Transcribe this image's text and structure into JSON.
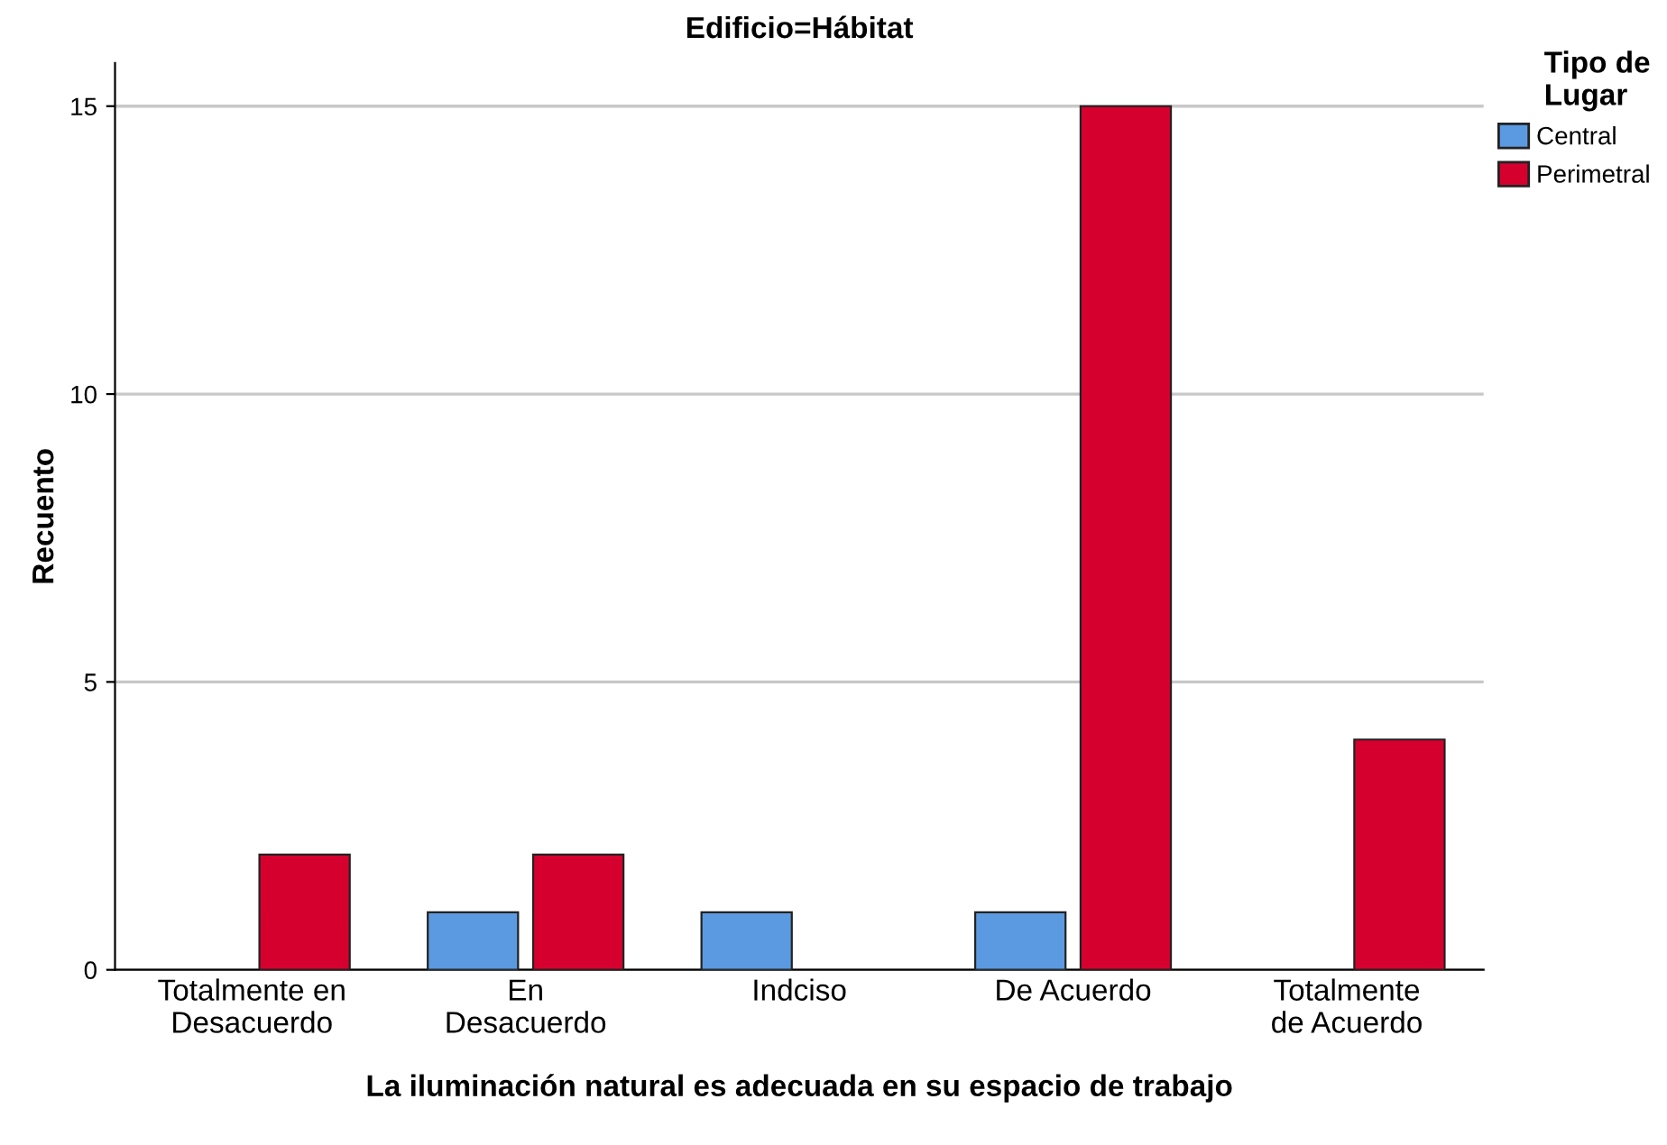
{
  "chart_data": {
    "type": "bar",
    "title": "Edificio=Hábitat",
    "xlabel": "La iluminación natural es adecuada en su espacio de trabajo",
    "ylabel": "Recuento",
    "legend_title": "Tipo de\nLugar",
    "categories": [
      "Totalmente en\nDesacuerdo",
      "En\nDesacuerdo",
      "Indciso",
      "De Acuerdo",
      "Totalmente\nde Acuerdo"
    ],
    "series": [
      {
        "name": "Central",
        "color": "#5b9ae0",
        "values": [
          null,
          1,
          1,
          1,
          null
        ]
      },
      {
        "name": "Perimetral",
        "color": "#d6002f",
        "values": [
          2,
          2,
          null,
          15,
          4
        ]
      }
    ],
    "ylim": [
      0,
      15.75
    ],
    "yticks": [
      0,
      5,
      10,
      15
    ],
    "grid": "y",
    "legend": "right"
  }
}
